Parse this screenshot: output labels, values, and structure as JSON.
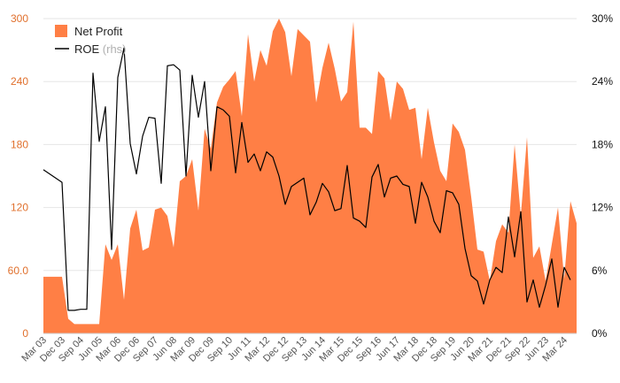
{
  "chart_data": {
    "type": "area",
    "title": "",
    "xlabel": "",
    "ylabel": "",
    "ylim": [
      0,
      300
    ],
    "y2lim": [
      0,
      30
    ],
    "grid": true,
    "legend_position": "top-left",
    "left_ticks": [
      "0",
      "60.0",
      "120",
      "180",
      "240",
      "300"
    ],
    "right_ticks": [
      "0%",
      "6%",
      "12%",
      "18%",
      "24%",
      "30%"
    ],
    "x_tick_labels": [
      "Mar 03",
      "Dec 03",
      "Sep 04",
      "Jun 05",
      "Mar 06",
      "Dec 06",
      "Sep 07",
      "Jun 08",
      "Mar 09",
      "Dec 09",
      "Sep 10",
      "Jun 11",
      "Mar 12",
      "Dec 12",
      "Sep 13",
      "Jun 14",
      "Mar 15",
      "Dec 15",
      "Sep 16",
      "Jun 17",
      "Mar 18",
      "Dec 18",
      "Sep 19",
      "Jun 20",
      "Mar 21",
      "Dec 21",
      "Sep 22",
      "Jun 23",
      "Mar 24"
    ],
    "series": [
      {
        "name": "Net Profit",
        "axis": "left",
        "kind": "area",
        "color": "#ff7f45",
        "values": [
          54,
          54,
          54,
          54,
          14,
          9,
          9,
          9,
          9,
          9,
          85,
          70,
          85,
          32,
          100,
          118,
          79,
          82,
          118,
          120,
          112,
          82,
          145,
          150,
          166,
          117,
          195,
          176,
          220,
          235,
          242,
          250,
          207,
          285,
          240,
          270,
          255,
          288,
          300,
          287,
          245,
          290,
          284,
          278,
          220,
          253,
          277,
          252,
          221,
          230,
          297,
          196,
          196,
          190,
          250,
          243,
          203,
          240,
          233,
          213,
          215,
          166,
          215,
          182,
          155,
          145,
          200,
          192,
          175,
          130,
          80,
          78,
          50,
          88,
          104,
          96,
          180,
          112,
          187,
          72,
          83,
          50,
          85,
          120,
          52,
          126,
          105
        ]
      },
      {
        "name": "ROE",
        "legend_suffix": "(rhs)",
        "axis": "right",
        "kind": "line",
        "color": "#000000",
        "values": [
          15.6,
          15.2,
          14.8,
          14.4,
          2.2,
          2.2,
          2.3,
          2.3,
          24.8,
          18.3,
          21.6,
          8,
          24.4,
          27.2,
          18.1,
          15.2,
          18.8,
          20.6,
          20.5,
          14.3,
          25.5,
          25.6,
          25.1,
          15,
          24.6,
          20.6,
          24,
          15.5,
          21.6,
          21.3,
          20.7,
          15.3,
          20.1,
          16.3,
          17.1,
          15.5,
          17.3,
          16.8,
          15,
          12.3,
          14,
          14.4,
          14.8,
          11.3,
          12.5,
          14.3,
          13.5,
          11.7,
          11.9,
          16,
          11,
          10.7,
          10.1,
          14.9,
          16.1,
          13,
          14.8,
          15,
          14.2,
          14,
          10.5,
          14.4,
          13,
          10.7,
          9.6,
          13.6,
          13.4,
          12.3,
          8.1,
          5.5,
          5,
          2.8,
          5.1,
          6.3,
          5.8,
          11.1,
          7.3,
          11.6,
          3,
          5.1,
          2.5,
          4.6,
          7.1,
          2.5,
          6.3,
          5.1
        ]
      }
    ]
  }
}
